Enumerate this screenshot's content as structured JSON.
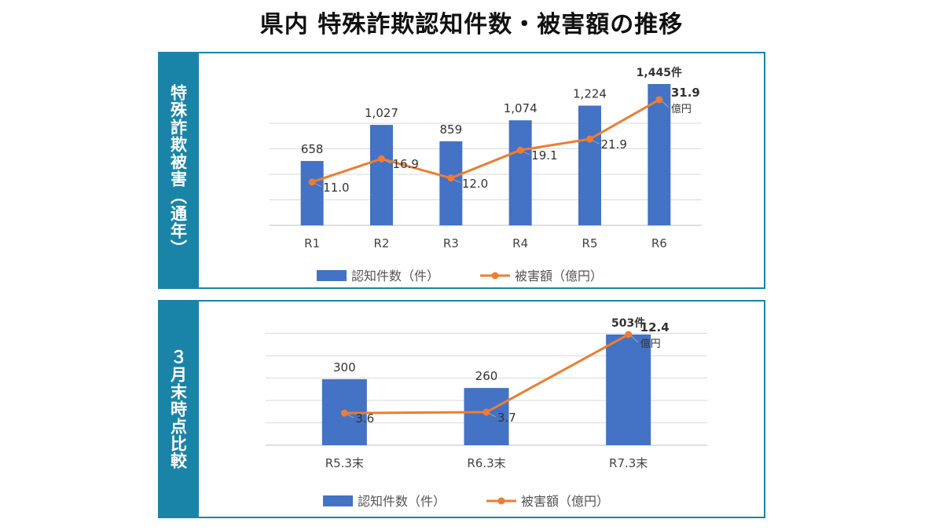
{
  "title": "県内 特殊詐欺認知件数・被害額の推移",
  "colors": {
    "bar": "#4472c4",
    "line": "#ed7d31",
    "accent": "#1a84a8",
    "grid": "#d9d9d9"
  },
  "panels": [
    {
      "side_label": "特殊詐欺被害（通年）"
    },
    {
      "side_label": "３月末時点比較"
    }
  ],
  "chart_data": [
    {
      "type": "bar",
      "title": "特殊詐欺被害（通年）",
      "categories": [
        "R1",
        "R2",
        "R3",
        "R4",
        "R5",
        "R6"
      ],
      "series": [
        {
          "name": "認知件数（件）",
          "kind": "bar",
          "values": [
            658,
            1027,
            859,
            1074,
            1224,
            1445
          ]
        },
        {
          "name": "被害額（億円）",
          "kind": "line",
          "values": [
            11.0,
            16.9,
            12.0,
            19.1,
            21.9,
            31.9
          ]
        }
      ],
      "bar_labels": [
        "658",
        "1,027",
        "859",
        "1,074",
        "1,224",
        "1,445件"
      ],
      "line_labels": [
        "11.0",
        "16.9",
        "12.0",
        "19.1",
        "21.9",
        "31.9"
      ],
      "last_line_unit": "億円",
      "legend": [
        "認知件数（件）",
        "被害額（億円）"
      ],
      "legend_position": "bottom"
    },
    {
      "type": "bar",
      "title": "３月末時点比較",
      "categories": [
        "R5.3末",
        "R6.3末",
        "R7.3末"
      ],
      "series": [
        {
          "name": "認知件数（件）",
          "kind": "bar",
          "values": [
            300,
            260,
            503
          ]
        },
        {
          "name": "被害額（億円）",
          "kind": "line",
          "values": [
            3.6,
            3.7,
            12.4
          ]
        }
      ],
      "bar_labels": [
        "300",
        "260",
        "503件"
      ],
      "line_labels": [
        "3.6",
        "3.7",
        "12.4"
      ],
      "last_line_unit": "億円",
      "legend": [
        "認知件数（件）",
        "被害額（億円）"
      ],
      "legend_position": "bottom"
    }
  ]
}
